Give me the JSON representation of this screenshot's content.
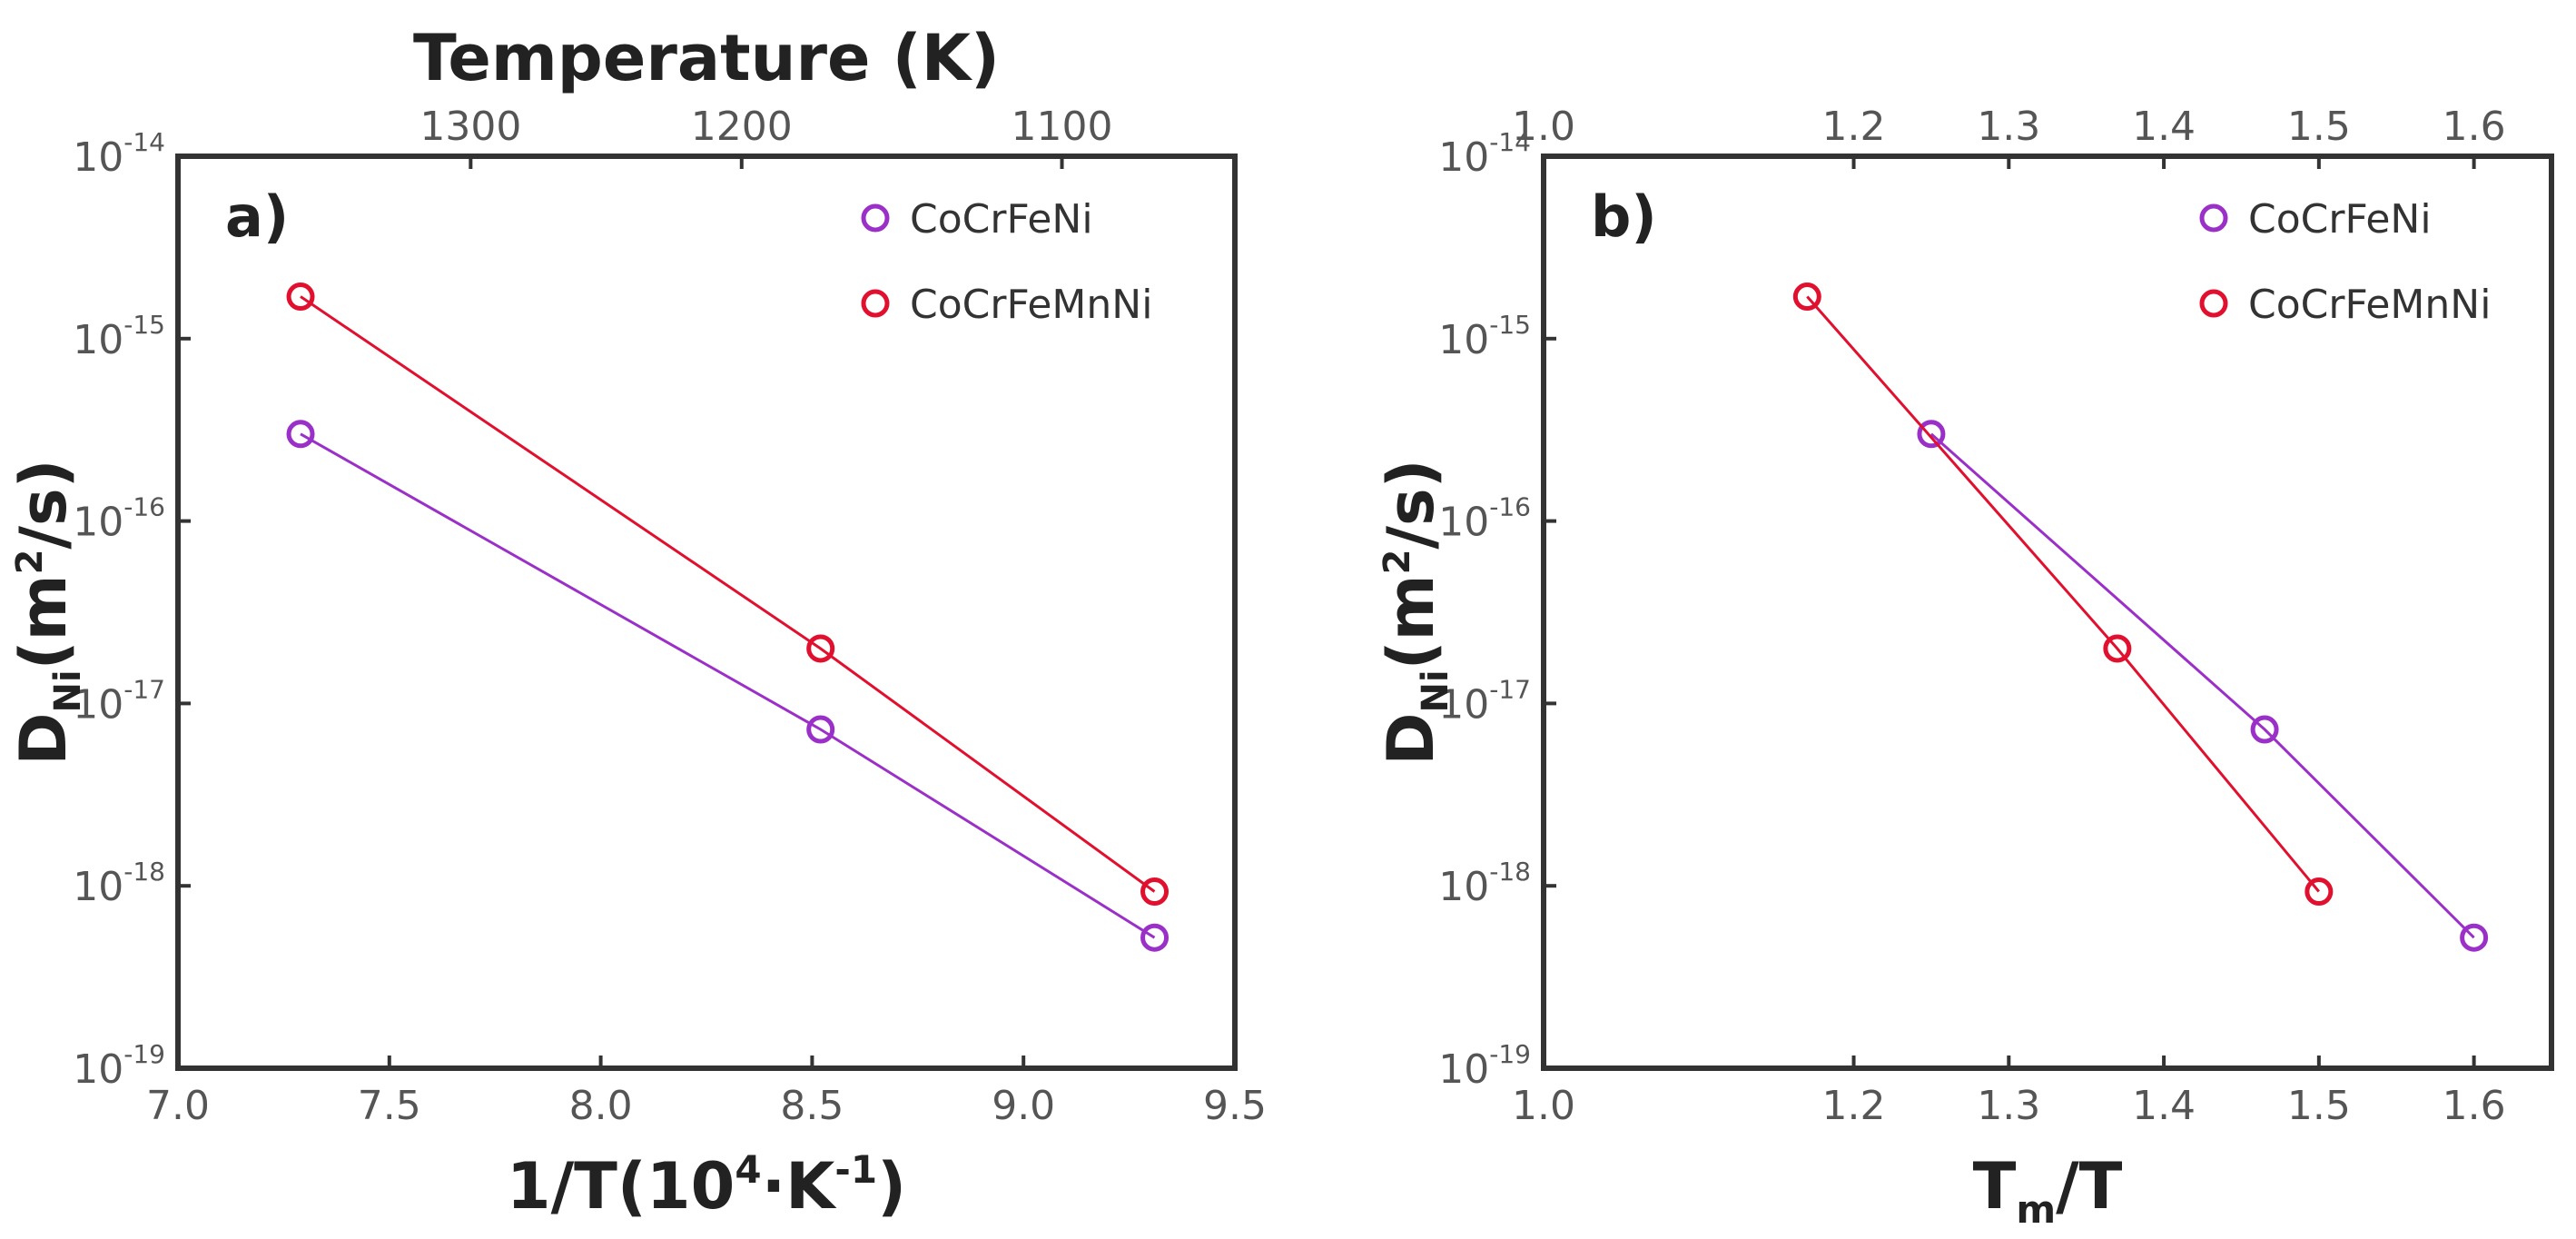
{
  "colors": {
    "CoCrFeNi": "#9b30c8",
    "CoCrFeMnNi": "#e0102e",
    "axis": "#333333"
  },
  "chart_data": [
    {
      "type": "scatter",
      "panel_label": "a)",
      "xlabel": "1/T(10",
      "xlabel_sup": "4",
      "xlabel_dot": "·",
      "xlabel_unit": "K",
      "xlabel_unit_sup": "-1",
      "xlabel_close": ")",
      "ylabel": "D",
      "ylabel_sub": "Ni",
      "ylabel_unit": "(m",
      "ylabel_unit_sup": "2",
      "ylabel_unit_end": "/s)",
      "top_xlabel": "Temperature (K)",
      "xlim": [
        7.0,
        9.5
      ],
      "ylim": [
        1e-19,
        1e-14
      ],
      "yscale": "log",
      "xticks": [
        "7.0",
        "7.5",
        "8.0",
        "8.5",
        "9.0",
        "9.5"
      ],
      "yticks": [
        {
          "base": "10",
          "exp": "-19"
        },
        {
          "base": "10",
          "exp": "-18"
        },
        {
          "base": "10",
          "exp": "-17"
        },
        {
          "base": "10",
          "exp": "-16"
        },
        {
          "base": "10",
          "exp": "-15"
        },
        {
          "base": "10",
          "exp": "-14"
        }
      ],
      "top_xticks": [
        "1300",
        "1200",
        "1100"
      ],
      "top_xtick_temperatures_K": [
        1300,
        1200,
        1100
      ],
      "legend_position": "top-right",
      "series": [
        {
          "name": "CoCrFeNi",
          "x": [
            7.29,
            8.52,
            9.31
          ],
          "y": [
            3e-16,
            7.2e-18,
            5.2e-19
          ]
        },
        {
          "name": "CoCrFeMnNi",
          "x": [
            7.29,
            8.52,
            9.31
          ],
          "y": [
            1.7e-15,
            2e-17,
            9.3e-19
          ]
        }
      ]
    },
    {
      "type": "scatter",
      "panel_label": "b)",
      "xlabel": "T",
      "xlabel_sub": "m",
      "xlabel_end": "/T",
      "ylabel": "D",
      "ylabel_sub": "Ni",
      "ylabel_unit": "(m",
      "ylabel_unit_sup": "2",
      "ylabel_unit_end": "/s)",
      "xlim": [
        1.0,
        1.65
      ],
      "ylim": [
        1e-19,
        1e-14
      ],
      "yscale": "log",
      "xticks": [
        "1.0",
        "1.2",
        "1.3",
        "1.4",
        "1.5",
        "1.6"
      ],
      "xtick_values": [
        1.0,
        1.2,
        1.3,
        1.4,
        1.5,
        1.6
      ],
      "yticks": [
        {
          "base": "10",
          "exp": "-19"
        },
        {
          "base": "10",
          "exp": "-18"
        },
        {
          "base": "10",
          "exp": "-17"
        },
        {
          "base": "10",
          "exp": "-16"
        },
        {
          "base": "10",
          "exp": "-15"
        },
        {
          "base": "10",
          "exp": "-14"
        }
      ],
      "top_xticks": [
        "1.0",
        "1.2",
        "1.3",
        "1.4",
        "1.5",
        "1.6"
      ],
      "legend_position": "top-right",
      "series": [
        {
          "name": "CoCrFeNi",
          "x": [
            1.25,
            1.465,
            1.6
          ],
          "y": [
            3e-16,
            7.2e-18,
            5.2e-19
          ]
        },
        {
          "name": "CoCrFeMnNi",
          "x": [
            1.17,
            1.37,
            1.5
          ],
          "y": [
            1.7e-15,
            2e-17,
            9.3e-19
          ]
        }
      ]
    }
  ]
}
